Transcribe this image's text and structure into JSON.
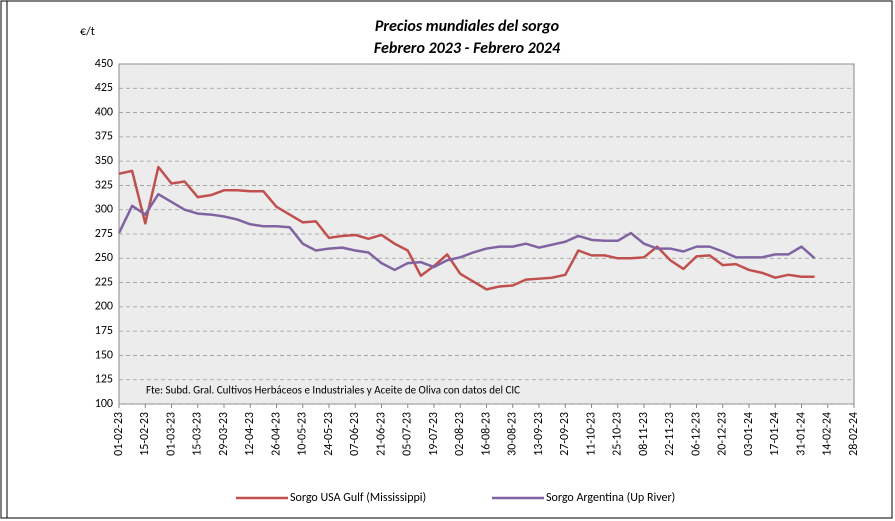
{
  "chart_data": {
    "type": "line",
    "title": [
      "Precios mundiales del sorgo",
      "Febrero 2023 - Febrero 2024"
    ],
    "y_label": "€/t",
    "note": "Fte: Subd. Gral. Cultivos Herbáceos e Industriales y Aceite de Oliva con datos del CIC",
    "x": [
      "01-02-23",
      "08-02-23",
      "15-02-23",
      "22-02-23",
      "01-03-23",
      "08-03-23",
      "15-03-23",
      "22-03-23",
      "29-03-23",
      "05-04-23",
      "12-04-23",
      "19-04-23",
      "26-04-23",
      "03-05-23",
      "10-05-23",
      "17-05-23",
      "24-05-23",
      "31-05-23",
      "07-06-23",
      "14-06-23",
      "21-06-23",
      "28-06-23",
      "05-07-23",
      "12-07-23",
      "19-07-23",
      "26-07-23",
      "02-08-23",
      "09-08-23",
      "16-08-23",
      "23-08-23",
      "30-08-23",
      "06-09-23",
      "13-09-23",
      "20-09-23",
      "27-09-23",
      "04-10-23",
      "11-10-23",
      "18-10-23",
      "25-10-23",
      "01-11-23",
      "08-11-23",
      "15-11-23",
      "22-11-23",
      "29-11-23",
      "06-12-23",
      "13-12-23",
      "20-12-23",
      "27-12-23",
      "03-01-24",
      "10-01-24",
      "17-01-24",
      "24-01-24",
      "31-01-24",
      "07-02-24"
    ],
    "series": [
      {
        "name": "Sorgo USA Gulf (Mississippi)",
        "color": "#c0504d",
        "values": [
          337,
          340,
          286,
          344,
          327,
          329,
          313,
          315,
          320,
          320,
          319,
          319,
          303,
          295,
          287,
          288,
          271,
          273,
          274,
          270,
          274,
          265,
          258,
          232,
          242,
          254,
          234,
          226,
          218,
          221,
          222,
          228,
          229,
          230,
          233,
          258,
          253,
          253,
          250,
          250,
          251,
          262,
          248,
          239,
          252,
          253,
          243,
          244,
          238,
          235,
          230,
          233,
          231,
          231
        ]
      },
      {
        "name": "Sorgo Argentina (Up River)",
        "color": "#8064a2",
        "values": [
          276,
          304,
          295,
          316,
          308,
          300,
          296,
          295,
          293,
          290,
          285,
          283,
          283,
          282,
          265,
          258,
          260,
          261,
          258,
          256,
          245,
          238,
          245,
          246,
          241,
          248,
          251,
          256,
          260,
          262,
          262,
          265,
          261,
          264,
          267,
          273,
          269,
          268,
          268,
          276,
          265,
          260,
          260,
          257,
          262,
          262,
          257,
          251,
          251,
          251,
          254,
          254,
          262,
          250
        ]
      }
    ],
    "xlim": [
      "01-02-23",
      "28-02-24"
    ],
    "xticks": [
      "01-02-23",
      "15-02-23",
      "01-03-23",
      "15-03-23",
      "29-03-23",
      "12-04-23",
      "26-04-23",
      "10-05-23",
      "24-05-23",
      "07-06-23",
      "21-06-23",
      "05-07-23",
      "19-07-23",
      "02-08-23",
      "16-08-23",
      "30-08-23",
      "13-09-23",
      "27-09-23",
      "11-10-23",
      "25-10-23",
      "08-11-23",
      "22-11-23",
      "06-12-23",
      "20-12-23",
      "03-01-24",
      "17-01-24",
      "31-01-24",
      "14-02-24",
      "28-02-24"
    ],
    "ylim": [
      100,
      450
    ],
    "yticks": [
      100,
      125,
      150,
      175,
      200,
      225,
      250,
      275,
      300,
      325,
      350,
      375,
      400,
      425,
      450
    ],
    "grid": true
  }
}
